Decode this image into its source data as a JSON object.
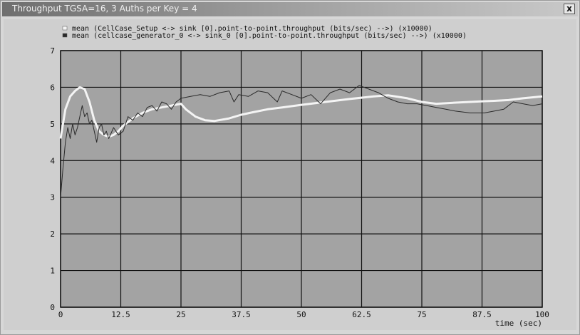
{
  "window": {
    "title": "Throughput TGSA=16, 3 Auths per Key = 4",
    "close_label": "x"
  },
  "colors": {
    "plot_bg": "#a3a3a3",
    "grid": "#111111",
    "series1": "#f4f4f4",
    "series2": "#2a2a2a",
    "text": "#111111"
  },
  "chart_data": {
    "type": "line",
    "title": "",
    "xlabel": "time (sec)",
    "ylabel": "",
    "xlim": [
      0,
      100
    ],
    "ylim": [
      0,
      7
    ],
    "x_ticks": [
      "0",
      "12.5",
      "25",
      "37.5",
      "50",
      "62.5",
      "75",
      "87.5",
      "100"
    ],
    "y_ticks": [
      "0",
      "1",
      "2",
      "3",
      "4",
      "5",
      "6",
      "7"
    ],
    "grid": true,
    "legend_position": "top",
    "series": [
      {
        "name": "mean (CellCase_Setup <-> sink [0].point-to-point.throughput (bits/sec) -->) (x10000)",
        "points": [
          [
            0,
            4.6
          ],
          [
            1,
            5.4
          ],
          [
            2,
            5.75
          ],
          [
            3,
            5.9
          ],
          [
            4,
            6.0
          ],
          [
            5,
            5.95
          ],
          [
            6,
            5.6
          ],
          [
            7,
            5.1
          ],
          [
            8,
            4.8
          ],
          [
            9,
            4.7
          ],
          [
            10,
            4.65
          ],
          [
            11,
            4.7
          ],
          [
            12,
            4.8
          ],
          [
            13,
            4.95
          ],
          [
            15,
            5.15
          ],
          [
            17,
            5.3
          ],
          [
            19,
            5.4
          ],
          [
            21,
            5.45
          ],
          [
            23,
            5.5
          ],
          [
            25,
            5.55
          ],
          [
            26,
            5.4
          ],
          [
            28,
            5.2
          ],
          [
            30,
            5.1
          ],
          [
            32,
            5.08
          ],
          [
            35,
            5.15
          ],
          [
            37.5,
            5.25
          ],
          [
            40,
            5.32
          ],
          [
            43,
            5.4
          ],
          [
            46,
            5.45
          ],
          [
            50,
            5.52
          ],
          [
            55,
            5.6
          ],
          [
            60,
            5.68
          ],
          [
            65,
            5.75
          ],
          [
            68,
            5.78
          ],
          [
            72,
            5.7
          ],
          [
            75,
            5.6
          ],
          [
            78,
            5.55
          ],
          [
            82,
            5.58
          ],
          [
            85,
            5.6
          ],
          [
            88,
            5.62
          ],
          [
            90,
            5.63
          ],
          [
            93,
            5.65
          ],
          [
            96,
            5.7
          ],
          [
            100,
            5.75
          ]
        ]
      },
      {
        "name": "mean (cellcase_generator_0 <-> sink_0 [0].point-to-point.throughput (bits/sec) -->) (x10000)",
        "points": [
          [
            0,
            3.0
          ],
          [
            0.5,
            3.8
          ],
          [
            1,
            4.5
          ],
          [
            1.5,
            4.9
          ],
          [
            2,
            4.6
          ],
          [
            2.5,
            5.0
          ],
          [
            3,
            4.7
          ],
          [
            3.5,
            4.9
          ],
          [
            4,
            5.2
          ],
          [
            4.5,
            5.5
          ],
          [
            5,
            5.2
          ],
          [
            5.5,
            5.3
          ],
          [
            6,
            5.0
          ],
          [
            6.5,
            5.1
          ],
          [
            7,
            4.8
          ],
          [
            7.5,
            4.5
          ],
          [
            8,
            4.9
          ],
          [
            8.5,
            5.0
          ],
          [
            9,
            4.7
          ],
          [
            9.5,
            4.8
          ],
          [
            10,
            4.6
          ],
          [
            11,
            4.9
          ],
          [
            12,
            4.7
          ],
          [
            13,
            4.8
          ],
          [
            14,
            5.2
          ],
          [
            15,
            5.1
          ],
          [
            16,
            5.3
          ],
          [
            17,
            5.2
          ],
          [
            18,
            5.45
          ],
          [
            19,
            5.5
          ],
          [
            20,
            5.35
          ],
          [
            21,
            5.6
          ],
          [
            22,
            5.55
          ],
          [
            23,
            5.4
          ],
          [
            24,
            5.6
          ],
          [
            25,
            5.7
          ],
          [
            27,
            5.75
          ],
          [
            29,
            5.8
          ],
          [
            31,
            5.75
          ],
          [
            33,
            5.85
          ],
          [
            35,
            5.9
          ],
          [
            36,
            5.6
          ],
          [
            37,
            5.8
          ],
          [
            39,
            5.75
          ],
          [
            41,
            5.9
          ],
          [
            43,
            5.85
          ],
          [
            45,
            5.6
          ],
          [
            46,
            5.9
          ],
          [
            48,
            5.8
          ],
          [
            50,
            5.7
          ],
          [
            52,
            5.8
          ],
          [
            54,
            5.55
          ],
          [
            56,
            5.85
          ],
          [
            58,
            5.95
          ],
          [
            60,
            5.85
          ],
          [
            62,
            6.05
          ],
          [
            64,
            5.95
          ],
          [
            66,
            5.85
          ],
          [
            68,
            5.7
          ],
          [
            70,
            5.6
          ],
          [
            72,
            5.55
          ],
          [
            74,
            5.55
          ],
          [
            76,
            5.5
          ],
          [
            78,
            5.45
          ],
          [
            80,
            5.4
          ],
          [
            82,
            5.35
          ],
          [
            85,
            5.3
          ],
          [
            88,
            5.3
          ],
          [
            90,
            5.35
          ],
          [
            92,
            5.4
          ],
          [
            94,
            5.6
          ],
          [
            96,
            5.55
          ],
          [
            98,
            5.5
          ],
          [
            100,
            5.55
          ]
        ]
      }
    ]
  }
}
